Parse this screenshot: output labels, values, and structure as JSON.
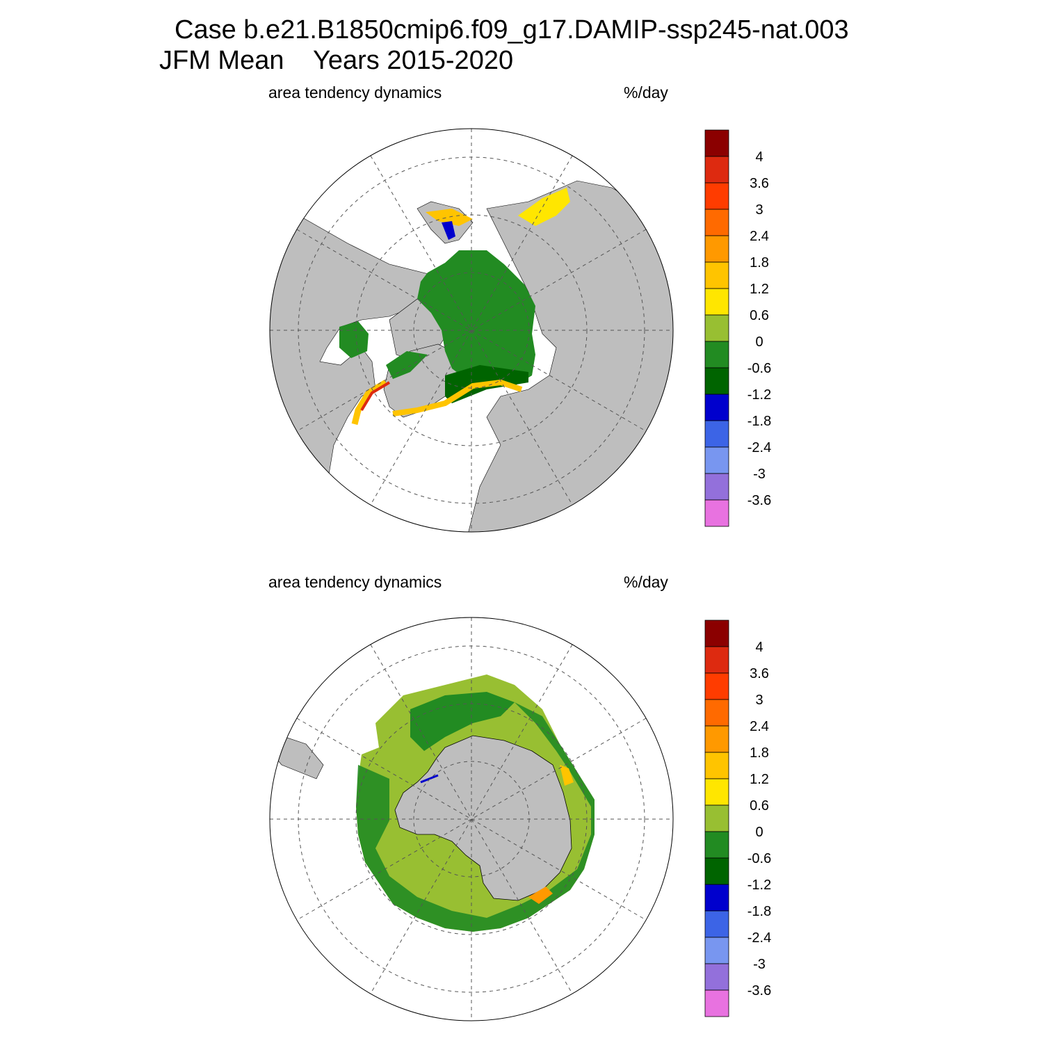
{
  "title": {
    "line1": "Case b.e21.B1850cmip6.f09_g17.DAMIP-ssp245-nat.003",
    "line2_season": "JFM Mean",
    "line2_years": "Years 2015-2020"
  },
  "colors": {
    "land": "#bebebe",
    "ocean_background": "#ffffff",
    "grid": "#555555"
  },
  "chart_data": [
    {
      "type": "heatmap",
      "name": "arctic",
      "projection": "north polar stereographic",
      "left_label": "area tendency dynamics",
      "right_label": "%/day",
      "dominant_values": "-1.2 to 0 over central Arctic; 1.2 to 4 along ice edges",
      "colorbar": {
        "tick_labels": [
          "4",
          "3.6",
          "3",
          "2.4",
          "1.8",
          "1.2",
          "0.6",
          "0",
          "-0.6",
          "-1.2",
          "-1.8",
          "-2.4",
          "-3",
          "-3.6"
        ],
        "colors": [
          "#8b0000",
          "#dd2a10",
          "#ff3c00",
          "#ff6a00",
          "#ff9900",
          "#ffc400",
          "#ffe600",
          "#98bf32",
          "#228b22",
          "#006400",
          "#0000cd",
          "#3c64e6",
          "#7896f0",
          "#9370db",
          "#e872e0"
        ]
      }
    },
    {
      "type": "heatmap",
      "name": "antarctic",
      "projection": "south polar stereographic",
      "left_label": "area tendency dynamics",
      "right_label": "%/day",
      "dominant_values": "-0.6 to 0.6 across ice pack; 1.2 to 2.4 in small patches near coast",
      "colorbar": {
        "tick_labels": [
          "4",
          "3.6",
          "3",
          "2.4",
          "1.8",
          "1.2",
          "0.6",
          "0",
          "-0.6",
          "-1.2",
          "-1.8",
          "-2.4",
          "-3",
          "-3.6"
        ],
        "colors": [
          "#8b0000",
          "#dd2a10",
          "#ff3c00",
          "#ff6a00",
          "#ff9900",
          "#ffc400",
          "#ffe600",
          "#98bf32",
          "#228b22",
          "#006400",
          "#0000cd",
          "#3c64e6",
          "#7896f0",
          "#9370db",
          "#e872e0"
        ]
      }
    }
  ]
}
